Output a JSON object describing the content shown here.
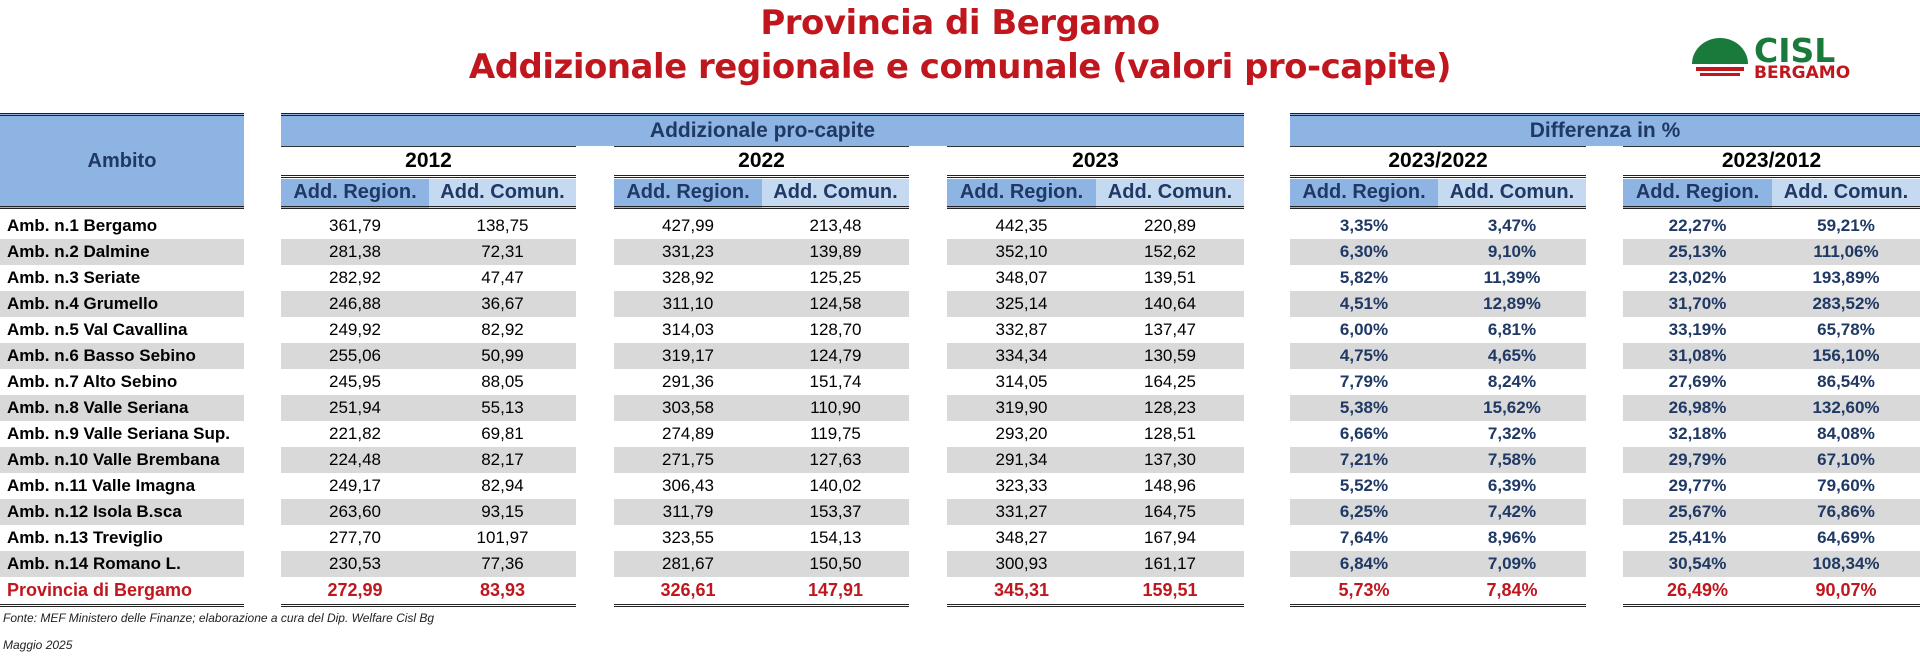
{
  "title_line1": "Provincia di Bergamo",
  "title_line2": "Addizionale regionale e comunale (valori pro-capite)",
  "logo": {
    "text1": "CISL",
    "text2": "BERGAMO",
    "colors": {
      "green": "#1a7a3c",
      "red": "#c0171f"
    }
  },
  "header": {
    "ambito": "Ambito",
    "group1": "Addizionale pro-capite",
    "group2": "Differenza in %",
    "years": [
      "2012",
      "2022",
      "2023",
      "2023/2022",
      "2023/2012"
    ],
    "sub_region": "Add. Region.",
    "sub_comun": "Add. Comun."
  },
  "rows": [
    {
      "label": "Amb. n.1 Bergamo",
      "v": [
        "361,79",
        "138,75",
        "427,99",
        "213,48",
        "442,35",
        "220,89",
        "3,35%",
        "3,47%",
        "22,27%",
        "59,21%"
      ]
    },
    {
      "label": "Amb. n.2 Dalmine",
      "v": [
        "281,38",
        "72,31",
        "331,23",
        "139,89",
        "352,10",
        "152,62",
        "6,30%",
        "9,10%",
        "25,13%",
        "111,06%"
      ]
    },
    {
      "label": "Amb. n.3 Seriate",
      "v": [
        "282,92",
        "47,47",
        "328,92",
        "125,25",
        "348,07",
        "139,51",
        "5,82%",
        "11,39%",
        "23,02%",
        "193,89%"
      ]
    },
    {
      "label": "Amb. n.4 Grumello",
      "v": [
        "246,88",
        "36,67",
        "311,10",
        "124,58",
        "325,14",
        "140,64",
        "4,51%",
        "12,89%",
        "31,70%",
        "283,52%"
      ]
    },
    {
      "label": "Amb. n.5 Val Cavallina",
      "v": [
        "249,92",
        "82,92",
        "314,03",
        "128,70",
        "332,87",
        "137,47",
        "6,00%",
        "6,81%",
        "33,19%",
        "65,78%"
      ]
    },
    {
      "label": "Amb. n.6 Basso Sebino",
      "v": [
        "255,06",
        "50,99",
        "319,17",
        "124,79",
        "334,34",
        "130,59",
        "4,75%",
        "4,65%",
        "31,08%",
        "156,10%"
      ]
    },
    {
      "label": "Amb. n.7 Alto Sebino",
      "v": [
        "245,95",
        "88,05",
        "291,36",
        "151,74",
        "314,05",
        "164,25",
        "7,79%",
        "8,24%",
        "27,69%",
        "86,54%"
      ]
    },
    {
      "label": "Amb. n.8 Valle Seriana",
      "v": [
        "251,94",
        "55,13",
        "303,58",
        "110,90",
        "319,90",
        "128,23",
        "5,38%",
        "15,62%",
        "26,98%",
        "132,60%"
      ]
    },
    {
      "label": "Amb. n.9 Valle Seriana Sup.",
      "v": [
        "221,82",
        "69,81",
        "274,89",
        "119,75",
        "293,20",
        "128,51",
        "6,66%",
        "7,32%",
        "32,18%",
        "84,08%"
      ]
    },
    {
      "label": "Amb. n.10 Valle Brembana",
      "v": [
        "224,48",
        "82,17",
        "271,75",
        "127,63",
        "291,34",
        "137,30",
        "7,21%",
        "7,58%",
        "29,79%",
        "67,10%"
      ]
    },
    {
      "label": "Amb. n.11 Valle Imagna",
      "v": [
        "249,17",
        "82,94",
        "306,43",
        "140,02",
        "323,33",
        "148,96",
        "5,52%",
        "6,39%",
        "29,77%",
        "79,60%"
      ]
    },
    {
      "label": "Amb. n.12 Isola B.sca",
      "v": [
        "263,60",
        "93,15",
        "311,79",
        "153,37",
        "331,27",
        "164,75",
        "6,25%",
        "7,42%",
        "25,67%",
        "76,86%"
      ]
    },
    {
      "label": "Amb. n.13 Treviglio",
      "v": [
        "277,70",
        "101,97",
        "323,55",
        "154,13",
        "348,27",
        "167,94",
        "7,64%",
        "8,96%",
        "25,41%",
        "64,69%"
      ]
    },
    {
      "label": "Amb. n.14 Romano L.",
      "v": [
        "230,53",
        "77,36",
        "281,67",
        "150,50",
        "300,93",
        "161,17",
        "6,84%",
        "7,09%",
        "30,54%",
        "108,34%"
      ]
    }
  ],
  "total": {
    "label": "Provincia di Bergamo",
    "v": [
      "272,99",
      "83,93",
      "326,61",
      "147,91",
      "345,31",
      "159,51",
      "5,73%",
      "7,84%",
      "26,49%",
      "90,07%"
    ]
  },
  "footnote1": "Fonte: MEF Ministero delle Finanze; elaborazione a cura del Dip. Welfare Cisl Bg",
  "footnote2": "Maggio 2025"
}
